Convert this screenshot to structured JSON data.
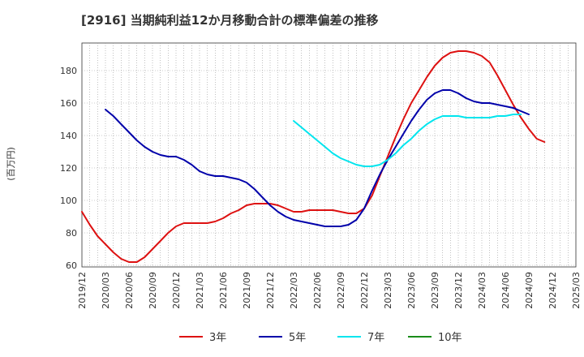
{
  "chart_data": {
    "type": "line",
    "title": "[2916]  当期純利益12か月移動合計の標準偏差の推移",
    "ylabel": "(百万円)",
    "xlabel": "",
    "ylim": [
      59,
      197
    ],
    "yticks": [
      60,
      80,
      100,
      120,
      140,
      160,
      180
    ],
    "xlim": [
      "2019/12",
      "2025/03"
    ],
    "xticks": [
      "2019/12",
      "2020/03",
      "2020/06",
      "2020/09",
      "2020/12",
      "2021/03",
      "2021/06",
      "2021/09",
      "2021/12",
      "2022/03",
      "2022/06",
      "2022/09",
      "2022/12",
      "2023/03",
      "2023/06",
      "2023/09",
      "2023/12",
      "2024/03",
      "2024/06",
      "2024/09",
      "2024/12",
      "2025/03"
    ],
    "grid": true,
    "legend_position": "bottom",
    "series": [
      {
        "name": "3年",
        "color": "#dd1111",
        "start": "2019/12",
        "values": [
          93,
          85,
          78,
          73,
          68,
          64,
          62,
          62,
          65,
          70,
          75,
          80,
          84,
          86,
          86,
          86,
          86,
          87,
          89,
          92,
          94,
          97,
          98,
          98,
          98,
          97,
          95,
          93,
          93,
          94,
          94,
          94,
          94,
          93,
          92,
          92,
          95,
          103,
          115,
          127,
          139,
          150,
          160,
          168,
          176,
          183,
          188,
          191,
          192,
          192,
          191,
          189,
          185,
          177,
          168,
          159,
          151,
          144,
          138,
          136
        ]
      },
      {
        "name": "5年",
        "color": "#0000aa",
        "start": "2020/03",
        "values": [
          156,
          152,
          147,
          142,
          137,
          133,
          130,
          128,
          127,
          127,
          125,
          122,
          118,
          116,
          115,
          115,
          114,
          113,
          111,
          107,
          102,
          97,
          93,
          90,
          88,
          87,
          86,
          85,
          84,
          84,
          84,
          85,
          88,
          95,
          106,
          116,
          125,
          133,
          141,
          149,
          156,
          162,
          166,
          168,
          168,
          166,
          163,
          161,
          160,
          160,
          159,
          158,
          157,
          155,
          153
        ]
      },
      {
        "name": "7年",
        "color": "#00e5ee",
        "start": "2022/03",
        "values": [
          149,
          145,
          141,
          137,
          133,
          129,
          126,
          124,
          122,
          121,
          121,
          122,
          125,
          129,
          134,
          138,
          143,
          147,
          150,
          152,
          152,
          152,
          151,
          151,
          151,
          151,
          152,
          152,
          153,
          153
        ]
      },
      {
        "name": "10年",
        "color": "#1a8c1a",
        "start": "",
        "values": []
      }
    ]
  }
}
